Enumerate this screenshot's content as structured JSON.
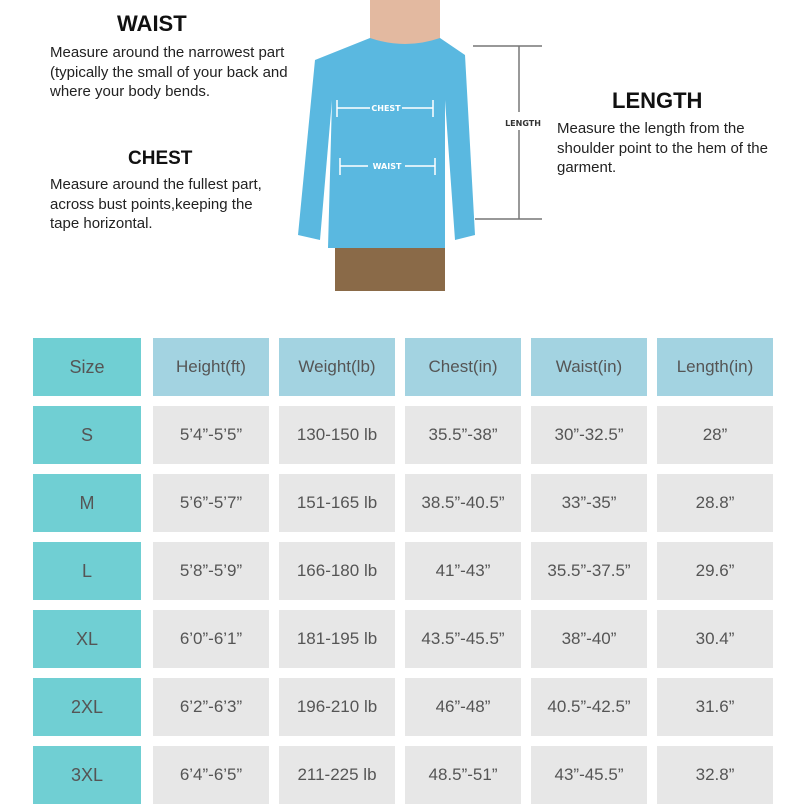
{
  "waist": {
    "title": "WAIST",
    "text": "Measure around the narrowest part (typically the small of your back and where your body bends."
  },
  "chest": {
    "title": "CHEST",
    "text": "Measure around the fullest part, across bust points,keeping the tape horizontal."
  },
  "length": {
    "title": "LENGTH",
    "text": "Measure the length from the shoulder point to the hem of the garment."
  },
  "figure": {
    "chest_label": "CHEST",
    "waist_label": "WAIST",
    "length_label": "LENGTH"
  },
  "colors": {
    "size_column": "#70cfd3",
    "header": "#a3d3e1",
    "cell": "#e7e7e7",
    "shirt": "#5ab8e0"
  },
  "table": {
    "headers": [
      "Size",
      "Height(ft)",
      "Weight(lb)",
      "Chest(in)",
      "Waist(in)",
      "Length(in)"
    ],
    "rows": [
      [
        "S",
        "5’4”-5’5”",
        "130-150 lb",
        "35.5”-38”",
        "30”-32.5”",
        "28”"
      ],
      [
        "M",
        "5’6”-5’7”",
        "151-165 lb",
        "38.5”-40.5”",
        "33”-35”",
        "28.8”"
      ],
      [
        "L",
        "5’8”-5’9”",
        "166-180 lb",
        "41”-43”",
        "35.5”-37.5”",
        "29.6”"
      ],
      [
        "XL",
        "6’0”-6’1”",
        "181-195 lb",
        "43.5”-45.5”",
        "38”-40”",
        "30.4”"
      ],
      [
        "2XL",
        "6’2”-6’3”",
        "196-210 lb",
        "46”-48”",
        "40.5”-42.5”",
        "31.6”"
      ],
      [
        "3XL",
        "6’4”-6’5”",
        "211-225 lb",
        "48.5”-51”",
        "43”-45.5”",
        "32.8”"
      ]
    ]
  }
}
